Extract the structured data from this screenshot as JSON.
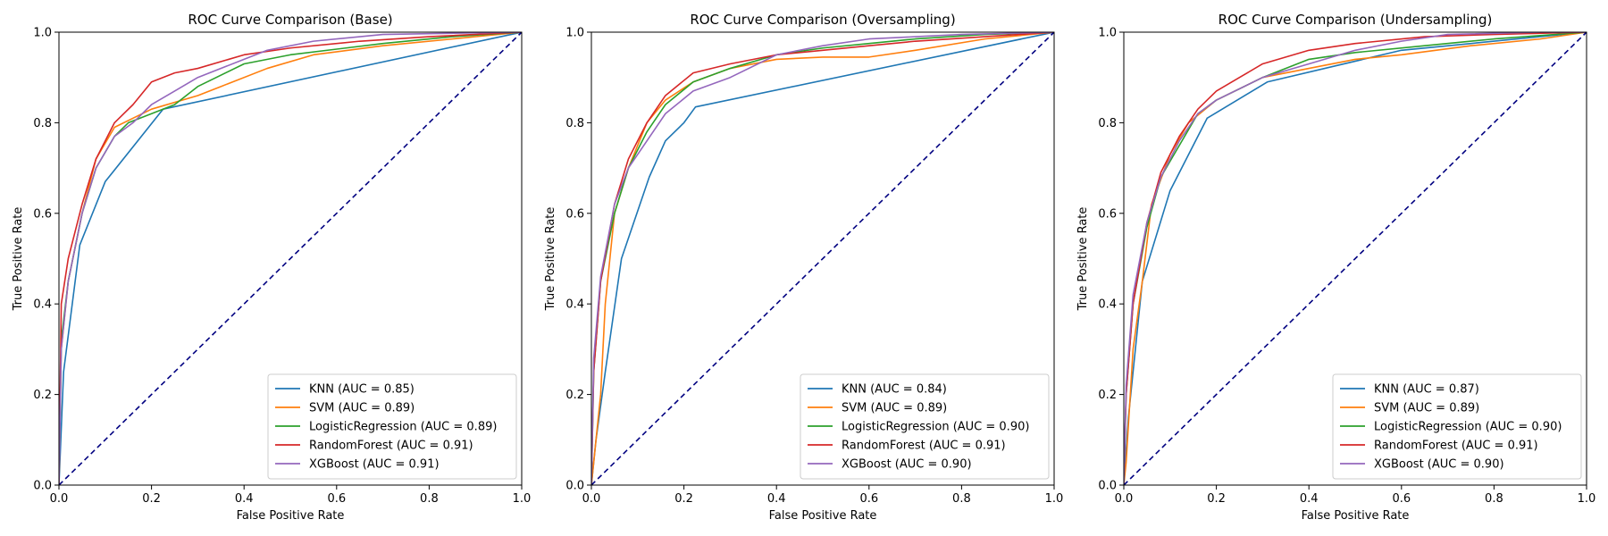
{
  "chart_data": [
    {
      "type": "line",
      "title": "ROC Curve Comparison (Base)",
      "xlabel": "False Positive Rate",
      "ylabel": "True Positive Rate",
      "xlim": [
        0,
        1
      ],
      "ylim": [
        0,
        1
      ],
      "xticks": [
        "0.0",
        "0.2",
        "0.4",
        "0.6",
        "0.8",
        "1.0"
      ],
      "yticks": [
        "0.0",
        "0.2",
        "0.4",
        "0.6",
        "0.8",
        "1.0"
      ],
      "legend_position": "lower-right",
      "grid": false,
      "diagonal": {
        "x": [
          0,
          1
        ],
        "y": [
          0,
          1
        ],
        "color": "#000080",
        "style": "dashed"
      },
      "series": [
        {
          "name": "KNN (AUC = 0.85)",
          "color": "#1f77b4",
          "x": [
            0,
            0.01,
            0.045,
            0.1,
            0.225,
            1.0
          ],
          "y": [
            0,
            0.25,
            0.53,
            0.67,
            0.83,
            1.0
          ]
        },
        {
          "name": "SVM (AUC = 0.89)",
          "color": "#ff7f0e",
          "x": [
            0,
            0.005,
            0.02,
            0.05,
            0.08,
            0.12,
            0.16,
            0.2,
            0.3,
            0.35,
            0.45,
            0.55,
            0.7,
            0.85,
            1.0
          ],
          "y": [
            0,
            0.3,
            0.45,
            0.6,
            0.72,
            0.79,
            0.81,
            0.83,
            0.86,
            0.88,
            0.92,
            0.95,
            0.97,
            0.985,
            1.0
          ]
        },
        {
          "name": "LogisticRegression (AUC = 0.89)",
          "color": "#2ca02c",
          "x": [
            0,
            0.005,
            0.02,
            0.05,
            0.08,
            0.12,
            0.15,
            0.2,
            0.25,
            0.3,
            0.4,
            0.5,
            0.7,
            0.85,
            1.0
          ],
          "y": [
            0,
            0.32,
            0.45,
            0.6,
            0.7,
            0.77,
            0.8,
            0.82,
            0.84,
            0.88,
            0.93,
            0.95,
            0.975,
            0.99,
            1.0
          ]
        },
        {
          "name": "RandomForest (AUC = 0.91)",
          "color": "#d62728",
          "x": [
            0,
            0.005,
            0.02,
            0.05,
            0.08,
            0.12,
            0.16,
            0.2,
            0.25,
            0.3,
            0.4,
            0.5,
            0.65,
            0.8,
            1.0
          ],
          "y": [
            0,
            0.4,
            0.5,
            0.62,
            0.72,
            0.8,
            0.84,
            0.89,
            0.91,
            0.92,
            0.95,
            0.965,
            0.98,
            0.99,
            1.0
          ]
        },
        {
          "name": "XGBoost (AUC = 0.91)",
          "color": "#9467bd",
          "x": [
            0,
            0.005,
            0.02,
            0.05,
            0.08,
            0.12,
            0.16,
            0.2,
            0.25,
            0.3,
            0.4,
            0.45,
            0.55,
            0.7,
            1.0
          ],
          "y": [
            0,
            0.3,
            0.45,
            0.6,
            0.7,
            0.77,
            0.8,
            0.84,
            0.87,
            0.9,
            0.94,
            0.96,
            0.98,
            0.995,
            1.0
          ]
        }
      ]
    },
    {
      "type": "line",
      "title": "ROC Curve Comparison (Oversampling)",
      "xlabel": "False Positive Rate",
      "ylabel": "True Positive Rate",
      "xlim": [
        0,
        1
      ],
      "ylim": [
        0,
        1
      ],
      "xticks": [
        "0.0",
        "0.2",
        "0.4",
        "0.6",
        "0.8",
        "1.0"
      ],
      "yticks": [
        "0.0",
        "0.2",
        "0.4",
        "0.6",
        "0.8",
        "1.0"
      ],
      "legend_position": "lower-right",
      "grid": false,
      "diagonal": {
        "x": [
          0,
          1
        ],
        "y": [
          0,
          1
        ],
        "color": "#000080",
        "style": "dashed"
      },
      "series": [
        {
          "name": "KNN (AUC = 0.84)",
          "color": "#1f77b4",
          "x": [
            0,
            0.01,
            0.03,
            0.065,
            0.125,
            0.16,
            0.2,
            0.225,
            1.0
          ],
          "y": [
            0,
            0.1,
            0.25,
            0.5,
            0.68,
            0.76,
            0.8,
            0.835,
            1.0
          ]
        },
        {
          "name": "SVM (AUC = 0.89)",
          "color": "#ff7f0e",
          "x": [
            0,
            0.005,
            0.02,
            0.03,
            0.05,
            0.08,
            0.12,
            0.16,
            0.22,
            0.3,
            0.4,
            0.5,
            0.6,
            0.7,
            0.85,
            1.0
          ],
          "y": [
            0,
            0.05,
            0.2,
            0.4,
            0.6,
            0.7,
            0.8,
            0.85,
            0.89,
            0.92,
            0.94,
            0.945,
            0.945,
            0.96,
            0.985,
            1.0
          ]
        },
        {
          "name": "LogisticRegression (AUC = 0.90)",
          "color": "#2ca02c",
          "x": [
            0,
            0.005,
            0.02,
            0.05,
            0.08,
            0.12,
            0.16,
            0.22,
            0.3,
            0.4,
            0.5,
            0.6,
            0.7,
            0.85,
            1.0
          ],
          "y": [
            0,
            0.25,
            0.45,
            0.6,
            0.7,
            0.78,
            0.84,
            0.89,
            0.92,
            0.95,
            0.965,
            0.975,
            0.985,
            0.995,
            1.0
          ]
        },
        {
          "name": "RandomForest (AUC = 0.91)",
          "color": "#d62728",
          "x": [
            0,
            0.005,
            0.02,
            0.05,
            0.08,
            0.12,
            0.16,
            0.22,
            0.3,
            0.4,
            0.5,
            0.6,
            0.7,
            0.85,
            1.0
          ],
          "y": [
            0,
            0.25,
            0.45,
            0.62,
            0.72,
            0.8,
            0.86,
            0.91,
            0.93,
            0.95,
            0.96,
            0.97,
            0.98,
            0.99,
            1.0
          ]
        },
        {
          "name": "XGBoost (AUC = 0.90)",
          "color": "#9467bd",
          "x": [
            0,
            0.005,
            0.02,
            0.05,
            0.08,
            0.12,
            0.16,
            0.22,
            0.3,
            0.4,
            0.5,
            0.6,
            0.7,
            0.8,
            1.0
          ],
          "y": [
            0,
            0.28,
            0.46,
            0.62,
            0.7,
            0.76,
            0.82,
            0.87,
            0.9,
            0.95,
            0.97,
            0.985,
            0.99,
            0.995,
            1.0
          ]
        }
      ]
    },
    {
      "type": "line",
      "title": "ROC Curve Comparison (Undersampling)",
      "xlabel": "False Positive Rate",
      "ylabel": "True Positive Rate",
      "xlim": [
        0,
        1
      ],
      "ylim": [
        0,
        1
      ],
      "xticks": [
        "0.0",
        "0.2",
        "0.4",
        "0.6",
        "0.8",
        "1.0"
      ],
      "yticks": [
        "0.0",
        "0.2",
        "0.4",
        "0.6",
        "0.8",
        "1.0"
      ],
      "legend_position": "lower-right",
      "grid": false,
      "diagonal": {
        "x": [
          0,
          1
        ],
        "y": [
          0,
          1
        ],
        "color": "#000080",
        "style": "dashed"
      },
      "series": [
        {
          "name": "KNN (AUC = 0.87)",
          "color": "#1f77b4",
          "x": [
            0,
            0.01,
            0.04,
            0.1,
            0.18,
            0.31,
            0.6,
            1.0
          ],
          "y": [
            0,
            0.15,
            0.45,
            0.65,
            0.81,
            0.89,
            0.96,
            1.0
          ]
        },
        {
          "name": "SVM (AUC = 0.89)",
          "color": "#ff7f0e",
          "x": [
            0,
            0.005,
            0.02,
            0.04,
            0.06,
            0.1,
            0.14,
            0.2,
            0.3,
            0.4,
            0.5,
            0.6,
            0.75,
            0.9,
            1.0
          ],
          "y": [
            0,
            0.05,
            0.3,
            0.45,
            0.62,
            0.73,
            0.8,
            0.85,
            0.9,
            0.92,
            0.94,
            0.95,
            0.97,
            0.985,
            1.0
          ]
        },
        {
          "name": "LogisticRegression (AUC = 0.90)",
          "color": "#2ca02c",
          "x": [
            0,
            0.005,
            0.02,
            0.05,
            0.08,
            0.12,
            0.16,
            0.2,
            0.3,
            0.4,
            0.5,
            0.65,
            0.8,
            1.0
          ],
          "y": [
            0,
            0.2,
            0.4,
            0.57,
            0.68,
            0.75,
            0.82,
            0.85,
            0.9,
            0.94,
            0.955,
            0.97,
            0.985,
            1.0
          ]
        },
        {
          "name": "RandomForest (AUC = 0.91)",
          "color": "#d62728",
          "x": [
            0,
            0.005,
            0.02,
            0.05,
            0.08,
            0.12,
            0.16,
            0.2,
            0.25,
            0.3,
            0.4,
            0.5,
            0.65,
            0.8,
            1.0
          ],
          "y": [
            0,
            0.2,
            0.4,
            0.58,
            0.69,
            0.77,
            0.83,
            0.87,
            0.9,
            0.93,
            0.96,
            0.975,
            0.99,
            0.995,
            1.0
          ]
        },
        {
          "name": "XGBoost (AUC = 0.90)",
          "color": "#9467bd",
          "x": [
            0,
            0.005,
            0.02,
            0.05,
            0.08,
            0.12,
            0.16,
            0.2,
            0.3,
            0.4,
            0.5,
            0.6,
            0.7,
            0.9,
            1.0
          ],
          "y": [
            0,
            0.22,
            0.42,
            0.58,
            0.68,
            0.76,
            0.82,
            0.85,
            0.9,
            0.93,
            0.96,
            0.98,
            0.995,
            1.0,
            1.0
          ]
        }
      ]
    }
  ]
}
